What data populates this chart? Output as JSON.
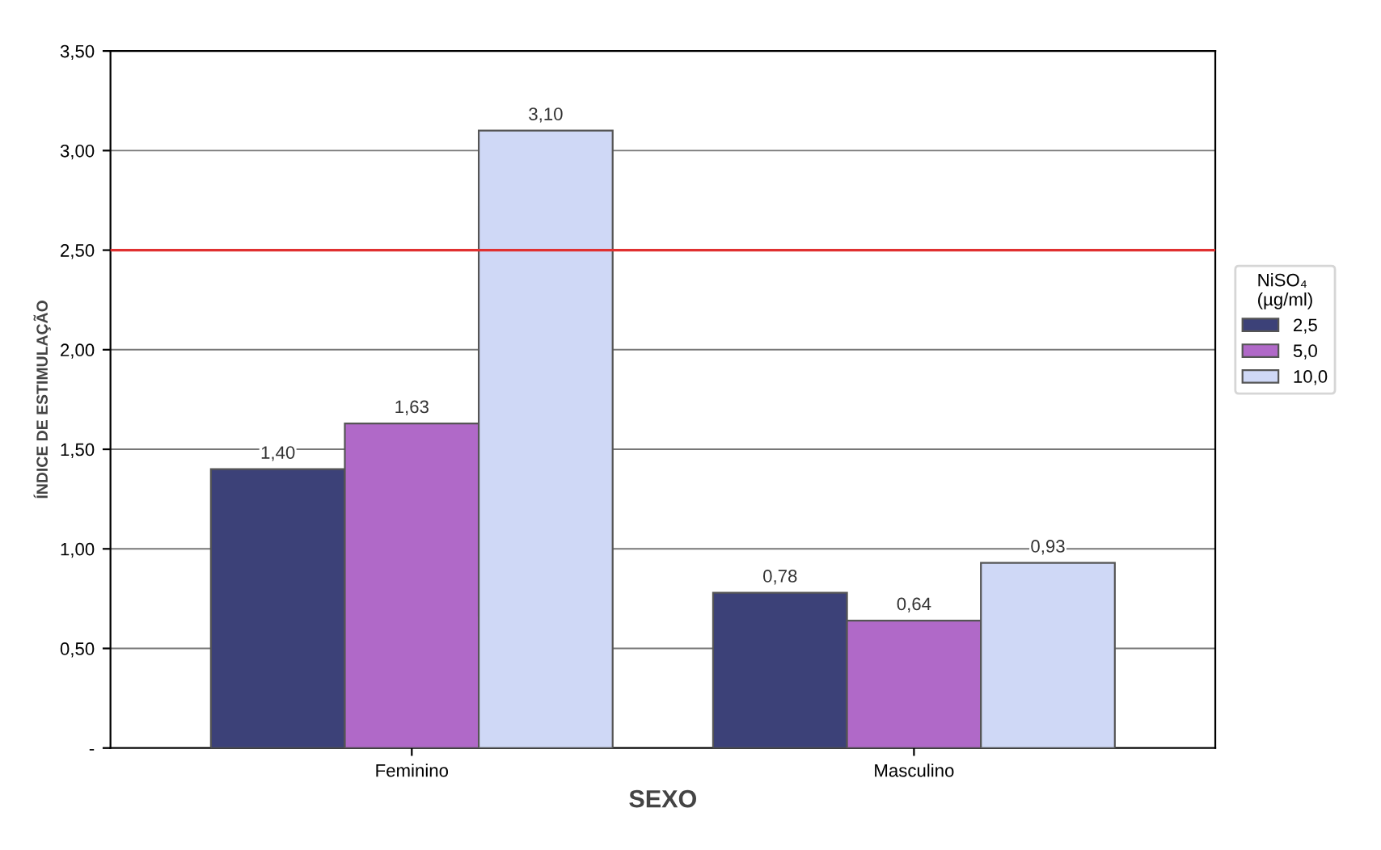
{
  "chart_data": {
    "type": "bar",
    "xlabel": "SEXO",
    "ylabel": "ÍNDICE DE ESTIMULAÇÃO",
    "legend_title": "NiSO₄\n(µg/ml)",
    "categories": [
      "Feminino",
      "Masculino"
    ],
    "series": [
      {
        "name": "2,5",
        "color": "#3c4178",
        "values": [
          1.4,
          0.78
        ],
        "value_labels": [
          "1,40",
          "0,78"
        ]
      },
      {
        "name": "5,0",
        "color": "#b069c8",
        "values": [
          1.63,
          0.64
        ],
        "value_labels": [
          "1,63",
          "0,64"
        ]
      },
      {
        "name": "10,0",
        "color": "#cfd8f6",
        "values": [
          3.1,
          0.93
        ],
        "value_labels": [
          "3,10",
          "0,93"
        ]
      }
    ],
    "ylim": [
      0,
      3.5
    ],
    "yticks": [
      {
        "value": 0,
        "label": "-"
      },
      {
        "value": 0.5,
        "label": "0,50"
      },
      {
        "value": 1,
        "label": "1,00"
      },
      {
        "value": 1.5,
        "label": "1,50"
      },
      {
        "value": 2,
        "label": "2,00"
      },
      {
        "value": 2.5,
        "label": "2,50"
      },
      {
        "value": 3,
        "label": "3,00"
      },
      {
        "value": 3.5,
        "label": "3,50"
      }
    ],
    "ref_lines": [
      {
        "axis": "y",
        "value": 2.5,
        "color": "#e03030"
      }
    ],
    "grid": "y",
    "legend": "right"
  }
}
